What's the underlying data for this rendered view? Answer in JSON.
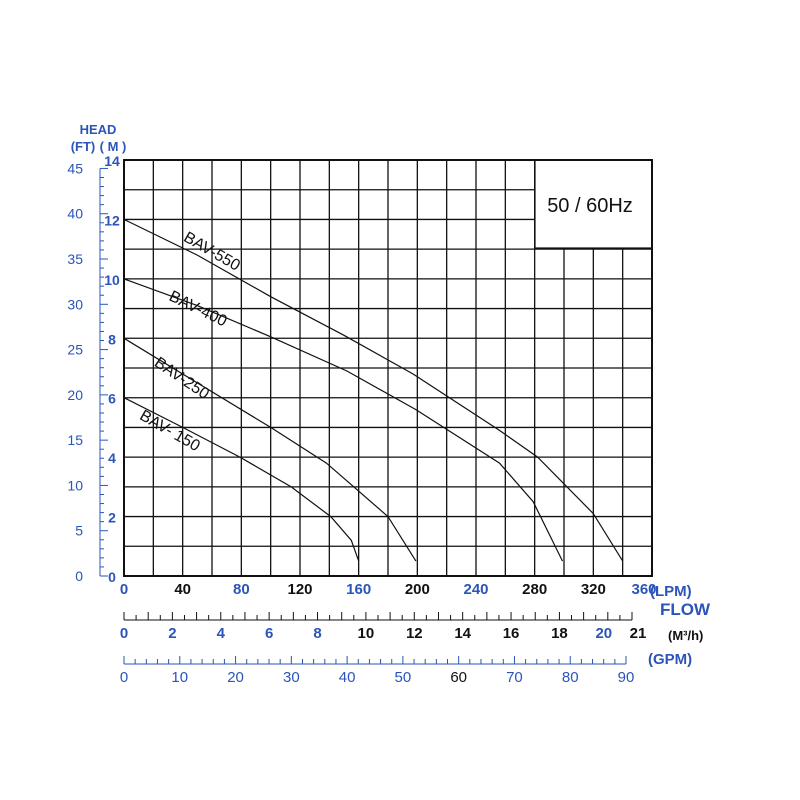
{
  "chart_data": {
    "type": "line",
    "title": "",
    "badge": "50 / 60Hz",
    "ylabel_top": "HEAD",
    "ylabel_ft": "(FT)",
    "ylabel_m": "( M )",
    "xlabel": "FLOW",
    "unit_lpm": "(LPM)",
    "unit_m3h": "(M³/h)",
    "unit_gpm": "(GPM)",
    "xlim": [
      0,
      360
    ],
    "ylim": [
      0,
      14
    ],
    "grid": true,
    "x_ticks_lpm": [
      0,
      40,
      80,
      120,
      160,
      200,
      240,
      280,
      320,
      360
    ],
    "x_tick_lpm_colors": [
      "#2b55b8",
      "#111",
      "#2b55b8",
      "#111",
      "#2b55b8",
      "#111",
      "#2b55b8",
      "#111",
      "#111",
      "#2b55b8"
    ],
    "y_ticks_m": [
      0,
      2,
      4,
      6,
      8,
      10,
      12,
      14
    ],
    "y_ticks_ft": [
      0,
      5,
      10,
      15,
      20,
      25,
      30,
      35,
      40,
      45
    ],
    "m3h_ticks": [
      0,
      2,
      4,
      6,
      8,
      10,
      12,
      14,
      16,
      18,
      20,
      21
    ],
    "m3h_tick_colors": [
      "#2b55b8",
      "#2b55b8",
      "#2b55b8",
      "#2b55b8",
      "#2b55b8",
      "#111",
      "#111",
      "#111",
      "#111",
      "#111",
      "#2b55b8",
      "#111"
    ],
    "gpm_ticks": [
      0,
      10,
      20,
      30,
      40,
      50,
      60,
      70,
      80,
      90
    ],
    "gpm_tick_colors": [
      "#2b55b8",
      "#2b55b8",
      "#2b55b8",
      "#2b55b8",
      "#2b55b8",
      "#2b55b8",
      "#111",
      "#2b55b8",
      "#2b55b8",
      "#2b55b8"
    ],
    "series": [
      {
        "name": "BAV-550",
        "x": [
          0,
          50,
          100,
          150,
          197,
          256,
          282,
          320,
          340
        ],
        "y": [
          12,
          10.8,
          9.4,
          8.1,
          6.8,
          4.9,
          4.0,
          2.1,
          0.5
        ]
      },
      {
        "name": "BAV-400",
        "x": [
          0,
          50,
          100,
          152,
          199,
          256,
          279,
          299
        ],
        "y": [
          10,
          9.1,
          8.05,
          6.9,
          5.6,
          3.8,
          2.5,
          0.5
        ]
      },
      {
        "name": "BAV-250",
        "x": [
          0,
          50,
          100,
          138,
          180,
          199
        ],
        "y": [
          8,
          6.5,
          5.0,
          3.8,
          2.0,
          0.5
        ]
      },
      {
        "name": "BAV- 150",
        "x": [
          0,
          40,
          79,
          114,
          141,
          155,
          160
        ],
        "y": [
          6,
          5.0,
          4.0,
          3.0,
          2.0,
          1.2,
          0.5
        ]
      }
    ]
  }
}
